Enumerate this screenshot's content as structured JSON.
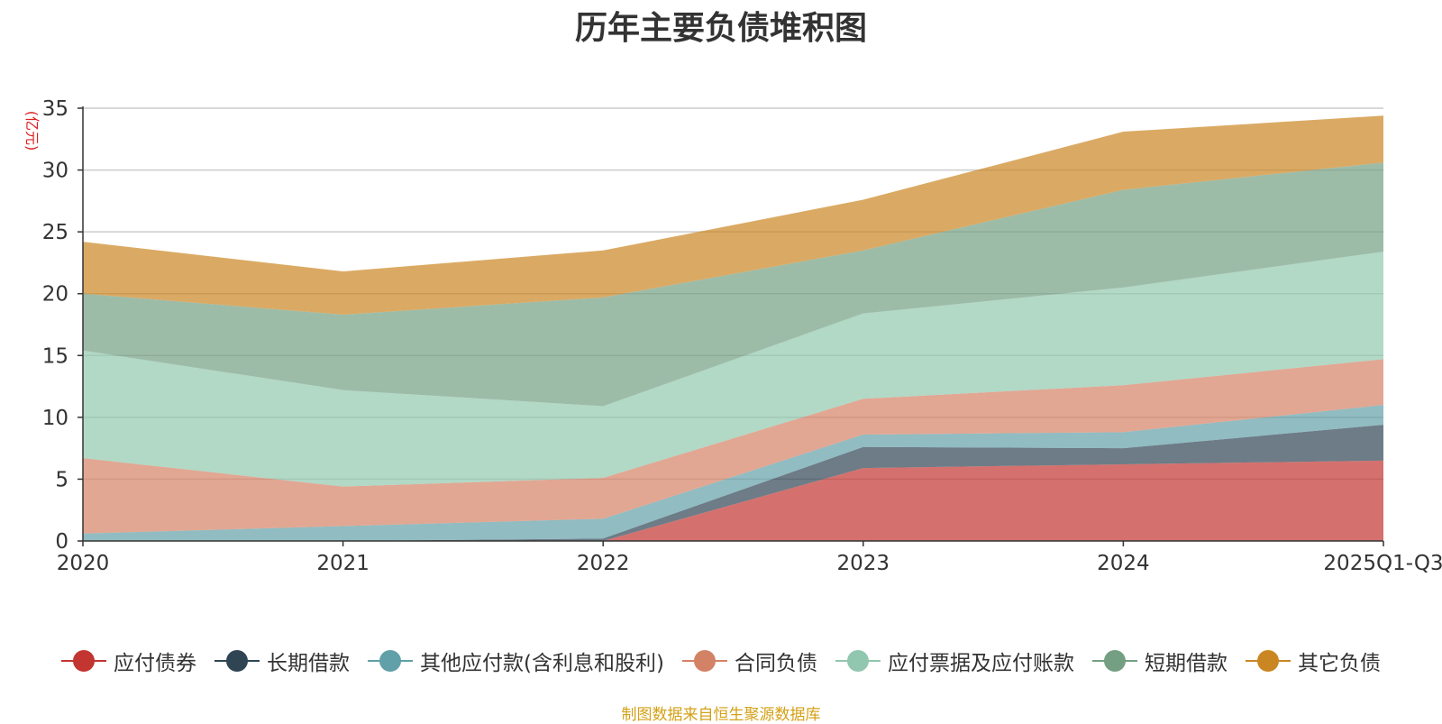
{
  "chart_data": {
    "type": "area",
    "stacked": true,
    "title": "历年主要负债堆积图",
    "unit_label": "(亿元)",
    "categories": [
      "2020",
      "2021",
      "2022",
      "2023",
      "2024",
      "2025Q1-Q3"
    ],
    "ylim": [
      0,
      35
    ],
    "yticks": [
      0,
      5,
      10,
      15,
      20,
      25,
      30,
      35
    ],
    "grid": true,
    "legend_position": "bottom",
    "source": "制图数据来自恒生聚源数据库",
    "series": [
      {
        "name": "应付债券",
        "color": "#c23531",
        "values": [
          0,
          0,
          0,
          5.9,
          6.2,
          6.5
        ]
      },
      {
        "name": "长期借款",
        "color": "#2f4554",
        "values": [
          0,
          0,
          0.2,
          1.7,
          1.3,
          2.9
        ]
      },
      {
        "name": "其他应付款(含利息和股利)",
        "color": "#61a0a8",
        "values": [
          0.6,
          1.2,
          1.6,
          1.0,
          1.3,
          1.6
        ]
      },
      {
        "name": "合同负债",
        "color": "#d48265",
        "values": [
          6.1,
          3.2,
          3.3,
          2.9,
          3.8,
          3.7
        ]
      },
      {
        "name": "应付票据及应付账款",
        "color": "#91c7ae",
        "values": [
          8.7,
          7.8,
          5.8,
          6.9,
          7.9,
          8.7
        ]
      },
      {
        "name": "短期借款",
        "color": "#749f83",
        "values": [
          4.6,
          6.1,
          8.8,
          5.1,
          7.9,
          7.2
        ]
      },
      {
        "name": "其它负债",
        "color": "#ca8622",
        "values": [
          4.2,
          3.5,
          3.8,
          4.1,
          4.7,
          3.8
        ]
      }
    ]
  }
}
